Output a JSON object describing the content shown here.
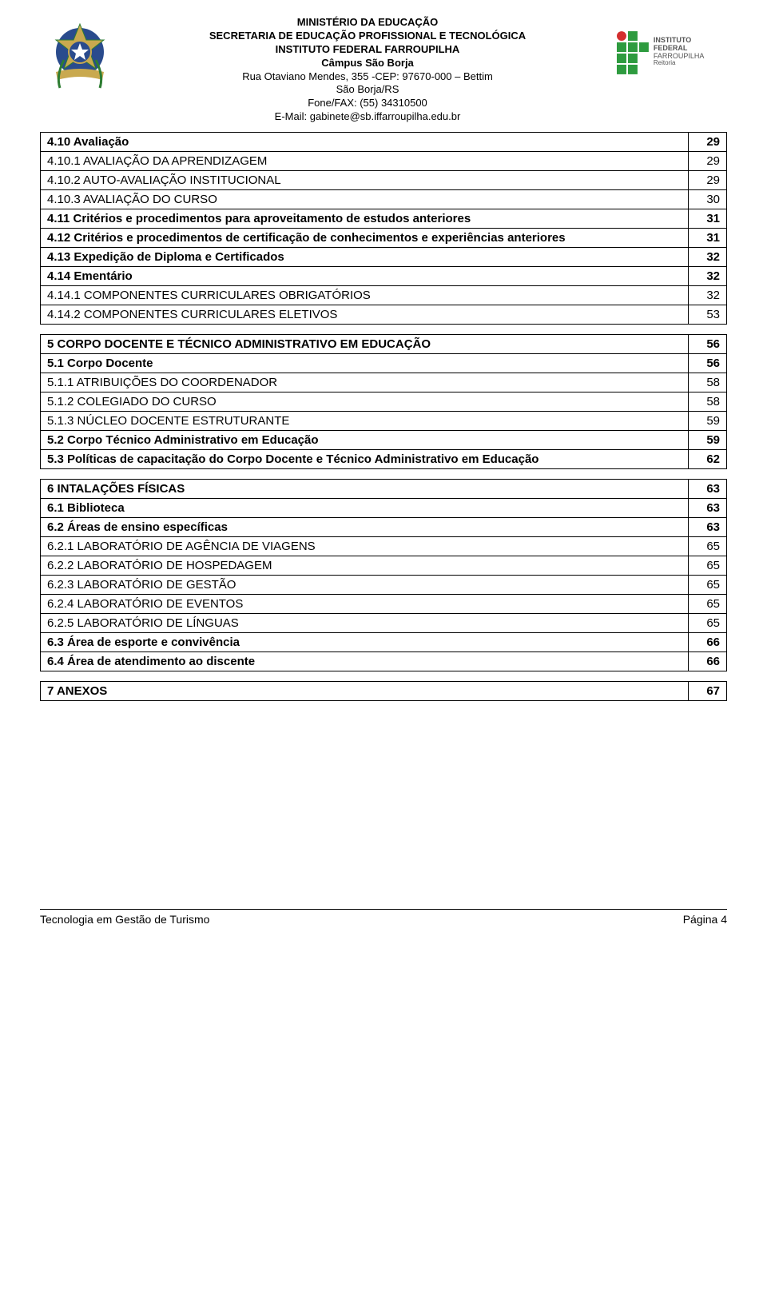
{
  "header": {
    "line1": "MINISTÉRIO DA EDUCAÇÃO",
    "line2": "SECRETARIA DE EDUCAÇÃO PROFISSIONAL E TECNOLÓGICA",
    "line3": "INSTITUTO FEDERAL FARROUPILHA",
    "line4": "Câmpus São Borja",
    "line5": "Rua Otaviano Mendes, 355 -CEP: 97670-000 – Bettim",
    "line6": "São Borja/RS",
    "line7": "Fone/FAX: (55) 34310500",
    "line8": "E-Mail: gabinete@sb.iffarroupilha.edu.br",
    "logo_right_line1": "INSTITUTO FEDERAL",
    "logo_right_line2": "FARROUPILHA",
    "logo_right_line3": "Reitoria"
  },
  "tables": [
    {
      "rows": [
        {
          "title": "4.10 Avaliação",
          "page": "29",
          "bold": true
        },
        {
          "title": "4.10.1 AVALIAÇÃO DA APRENDIZAGEM",
          "page": "29",
          "bold": false
        },
        {
          "title": "4.10.2 AUTO-AVALIAÇÃO INSTITUCIONAL",
          "page": "29",
          "bold": false
        },
        {
          "title": "4.10.3 AVALIAÇÃO DO CURSO",
          "page": "30",
          "bold": false
        },
        {
          "title": "4.11 Critérios e procedimentos para aproveitamento de estudos anteriores",
          "page": "31",
          "bold": true
        },
        {
          "title": "4.12 Critérios e procedimentos de certificação de conhecimentos e experiências anteriores",
          "page": "31",
          "bold": true
        },
        {
          "title": "4.13 Expedição de Diploma e Certificados",
          "page": "32",
          "bold": true
        },
        {
          "title": "4.14 Ementário",
          "page": "32",
          "bold": true
        },
        {
          "title": "4.14.1 COMPONENTES CURRICULARES OBRIGATÓRIOS",
          "page": "32",
          "bold": false
        },
        {
          "title": "4.14.2 COMPONENTES CURRICULARES ELETIVOS",
          "page": "53",
          "bold": false
        }
      ]
    },
    {
      "rows": [
        {
          "title": "5 CORPO DOCENTE E TÉCNICO ADMINISTRATIVO EM EDUCAÇÃO",
          "page": "56",
          "bold": true
        },
        {
          "title": "5.1 Corpo Docente",
          "page": "56",
          "bold": true
        },
        {
          "title": "5.1.1 ATRIBUIÇÕES DO COORDENADOR",
          "page": "58",
          "bold": false
        },
        {
          "title": "5.1.2 COLEGIADO DO CURSO",
          "page": "58",
          "bold": false
        },
        {
          "title": "5.1.3 NÚCLEO DOCENTE ESTRUTURANTE",
          "page": "59",
          "bold": false
        },
        {
          "title": "5.2 Corpo Técnico Administrativo em Educação",
          "page": "59",
          "bold": true
        },
        {
          "title": "5.3 Políticas de capacitação do Corpo Docente e Técnico Administrativo em Educação",
          "page": "62",
          "bold": true
        }
      ]
    },
    {
      "rows": [
        {
          "title": "6 INTALAÇÕES FÍSICAS",
          "page": "63",
          "bold": true
        },
        {
          "title": "6.1 Biblioteca",
          "page": "63",
          "bold": true
        },
        {
          "title": "6.2 Áreas de ensino específicas",
          "page": "63",
          "bold": true
        },
        {
          "title": "6.2.1 LABORATÓRIO DE AGÊNCIA DE VIAGENS",
          "page": "65",
          "bold": false
        },
        {
          "title": "6.2.2 LABORATÓRIO DE HOSPEDAGEM",
          "page": "65",
          "bold": false
        },
        {
          "title": "6.2.3 LABORATÓRIO DE GESTÃO",
          "page": "65",
          "bold": false
        },
        {
          "title": "6.2.4 LABORATÓRIO DE EVENTOS",
          "page": "65",
          "bold": false
        },
        {
          "title": "6.2.5 LABORATÓRIO DE LÍNGUAS",
          "page": "65",
          "bold": false
        },
        {
          "title": "6.3 Área de esporte e convivência",
          "page": "66",
          "bold": true
        },
        {
          "title": "6.4 Área de atendimento ao discente",
          "page": "66",
          "bold": true
        }
      ]
    },
    {
      "rows": [
        {
          "title": "7 ANEXOS",
          "page": "67",
          "bold": true
        }
      ]
    }
  ],
  "footer": {
    "left": "Tecnologia em Gestão de Turismo",
    "right_label": "Página ",
    "right_num": "4"
  },
  "colors": {
    "seal_blue": "#2a4b8d",
    "seal_gold": "#c9a94f",
    "seal_green": "#2e7d32",
    "logo_green": "#2e9b3f",
    "logo_red": "#d32f2f",
    "text_gray": "#555555"
  }
}
